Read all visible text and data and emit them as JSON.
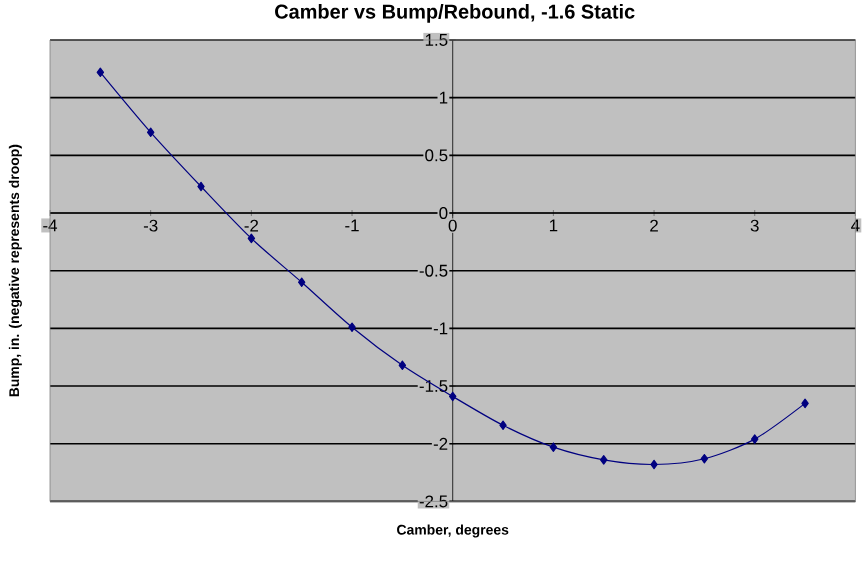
{
  "chart_data": {
    "type": "line",
    "title": "Camber vs Bump/Rebound, -1.6 Static",
    "xlabel": "Camber, degrees",
    "ylabel": "Bump, in.  (negative represents droop)",
    "x": [
      -3.5,
      -3,
      -2.5,
      -2,
      -1.5,
      -1,
      -0.5,
      0,
      0.5,
      1,
      1.5,
      2,
      2.5,
      3,
      3.5
    ],
    "series": [
      {
        "color": "#000080",
        "values": [
          1.22,
          0.7,
          0.23,
          -0.22,
          -0.6,
          -0.99,
          -1.32,
          -1.59,
          -1.84,
          -2.03,
          -2.14,
          -2.18,
          -2.13,
          -1.96,
          -1.65
        ]
      }
    ],
    "xlim": [
      -4,
      4
    ],
    "ylim": [
      -2.5,
      1.5
    ],
    "xticks": [
      -4,
      -3,
      -2,
      -1,
      0,
      1,
      2,
      3,
      4
    ],
    "yticks": [
      -2.5,
      -2,
      -1.5,
      -1,
      -0.5,
      0,
      0.5,
      1,
      1.5
    ],
    "grid": "y",
    "marker": "diamond",
    "line_style": "solid"
  }
}
